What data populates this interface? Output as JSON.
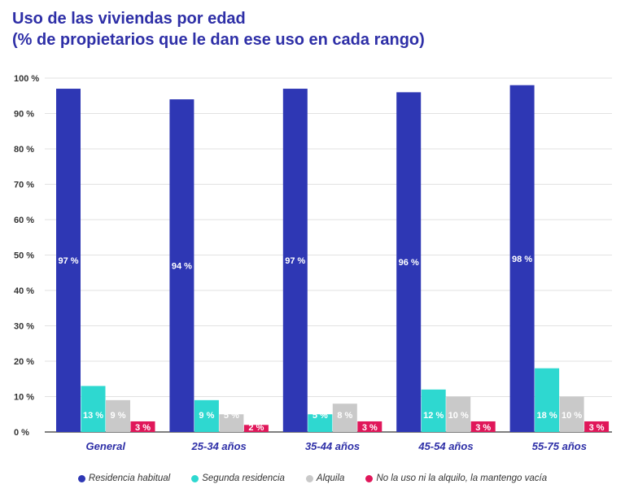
{
  "title_line1": "Uso de las viviendas por edad",
  "title_line2": "(% de propietarios que le dan ese uso en cada rango)",
  "colors": {
    "title": "#2e2fa7",
    "residencia": "#2e37b4",
    "segunda": "#2ed8d0",
    "alquila": "#c9c9c9",
    "vacia": "#e0175a"
  },
  "chart_data": {
    "type": "bar",
    "title": "Uso de las viviendas por edad (% de propietarios que le dan ese uso en cada rango)",
    "xlabel": "",
    "ylabel": "",
    "ylim": [
      0,
      100
    ],
    "grid": true,
    "y_ticks": [
      "0 %",
      "10 %",
      "20 %",
      "30 %",
      "40 %",
      "50 %",
      "60 %",
      "70 %",
      "80 %",
      "90 %",
      "100 %"
    ],
    "categories": [
      "General",
      "25-34 años",
      "35-44 años",
      "45-54 años",
      "55-75 años"
    ],
    "series": [
      {
        "name": "Residencia habitual",
        "color": "#2e37b4",
        "values": [
          97,
          94,
          97,
          96,
          98
        ],
        "labels": [
          "97 %",
          "94 %",
          "97 %",
          "96 %",
          "98 %"
        ]
      },
      {
        "name": "Segunda residencia",
        "color": "#2ed8d0",
        "values": [
          13,
          9,
          5,
          12,
          18
        ],
        "labels": [
          "13 %",
          "9 %",
          "5 %",
          "12 %",
          "18 %"
        ]
      },
      {
        "name": "Alquila",
        "color": "#c9c9c9",
        "values": [
          9,
          5,
          8,
          10,
          10
        ],
        "labels": [
          "9 %",
          "5 %",
          "8 %",
          "10 %",
          "10 %"
        ]
      },
      {
        "name": "No la uso ni la alquilo, la mantengo vacía",
        "color": "#e0175a",
        "values": [
          3,
          2,
          3,
          3,
          3
        ],
        "labels": [
          "3 %",
          "2 %",
          "3 %",
          "3 %",
          "3 %"
        ]
      }
    ],
    "legend_position": "bottom"
  }
}
